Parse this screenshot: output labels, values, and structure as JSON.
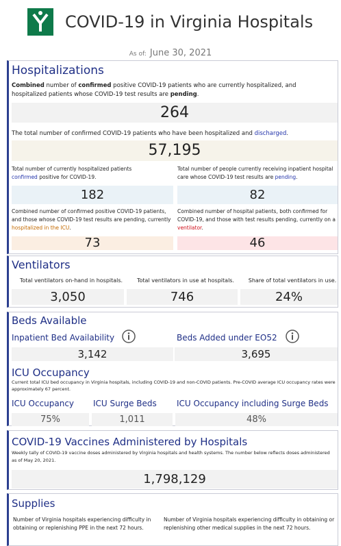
{
  "header": {
    "title": "COVID-19 in Virginia Hospitals",
    "as_of_label": "As of:",
    "as_of_date": "June 30, 2021"
  },
  "hospitalizations": {
    "title": "Hospitalizations",
    "current": {
      "description": [
        "Combined",
        " number of ",
        "confirmed",
        " positive COVID-19 patients who are currently hospitalized, and hospitalized patients whose COVID-19 test results are ",
        "pending",
        "."
      ],
      "value": "264"
    },
    "discharged": {
      "description": [
        "The total number of confirmed COVID-19 patients who have been hospitalized and ",
        "discharged",
        "."
      ],
      "value": "57,195"
    },
    "confirmed": {
      "description": [
        "Total number of currently hospitalized patients ",
        "confirmed",
        " positive for COVID-19."
      ],
      "value": "182"
    },
    "pending": {
      "description": [
        "Total number of people currently receiving inpatient hospital care whose COVID-19 test results are ",
        "pending",
        "."
      ],
      "value": "82"
    },
    "icu": {
      "description": [
        "Combined number of confirmed positive COVID-19 patients, and those whose COVID-19 test results are pending, currently ",
        "hospitalized in the ICU",
        "."
      ],
      "value": "73"
    },
    "ventilator": {
      "description": [
        "Combined number of hospital patients, both confirmed for COVID-19, and those with test results pending, currently on a ",
        "ventilator",
        "."
      ],
      "value": "46"
    }
  },
  "ventilators": {
    "title": "Ventilators",
    "items": [
      {
        "label": "Total ventilators on-hand in hospitals.",
        "value": "3,050"
      },
      {
        "label": "Total ventilators in use at hospitals.",
        "value": "746"
      },
      {
        "label": "Share of total ventilators in use.",
        "value": "24%"
      }
    ]
  },
  "beds": {
    "title": "Beds Available",
    "items": [
      {
        "label": "Inpatient Bed Availability",
        "value": "3,142"
      },
      {
        "label": "Beds Added under EO52",
        "value": "3,695"
      }
    ]
  },
  "icu_occupancy": {
    "title": "ICU Occupancy",
    "description": "Current total ICU bed occupancy in Virginia hospitals, including COVID-19 and non-COVID patients. Pre-COVID average ICU occupancy rates were approximately 67 percent.",
    "items": [
      {
        "label": "ICU Occupancy",
        "value": "75%"
      },
      {
        "label": "ICU Surge Beds",
        "value": "1,011"
      },
      {
        "label": "ICU Occupancy including Surge Beds",
        "value": "48%"
      }
    ]
  },
  "vaccines": {
    "title": "COVID-19 Vaccines Administered by Hospitals",
    "description": "Weekly tally of COVID-19 vaccine doses administered by Virginia hospitals and health systems. The number below reflects doses administered as of May 20, 2021.",
    "value": "1,798,129"
  },
  "supplies": {
    "title": "Supplies",
    "items": [
      "Number of Virginia hospitals experiencing difficulty in obtaining or replenishing PPE in the next 72 hours.",
      "Number of Virginia hospitals experiencing difficulty in obtaining or replenishing other medical supplies in the next 72 hours."
    ]
  }
}
